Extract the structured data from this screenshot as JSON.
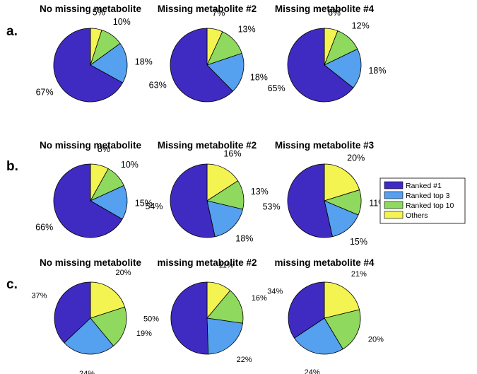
{
  "figure": {
    "colors": {
      "Ranked #1": "#3f2bc2",
      "Ranked top 3": "#55a0ef",
      "Ranked top 10": "#8ed95e",
      "Others": "#f3f451"
    },
    "legend_position": "center-right"
  },
  "chart_data": [
    {
      "type": "pie",
      "row": "a.",
      "title": "No missing metabolite",
      "categories": [
        "Others",
        "Ranked top 10",
        "Ranked top 3",
        "Ranked #1"
      ],
      "values": [
        5,
        10,
        18,
        67
      ],
      "labels": [
        "5%",
        "10%",
        "18%",
        "67%"
      ]
    },
    {
      "type": "pie",
      "row": "a.",
      "title": "Missing metabolite #2",
      "categories": [
        "Others",
        "Ranked top 10",
        "Ranked top 3",
        "Ranked #1"
      ],
      "values": [
        7,
        13,
        18,
        63
      ],
      "labels": [
        "7%",
        "13%",
        "18%",
        "63%"
      ]
    },
    {
      "type": "pie",
      "row": "a.",
      "title": "Missing metabolite #4",
      "categories": [
        "Others",
        "Ranked top 10",
        "Ranked top 3",
        "Ranked #1"
      ],
      "values": [
        6,
        12,
        18,
        65
      ],
      "labels": [
        "6%",
        "12%",
        "18%",
        "65%"
      ]
    },
    {
      "type": "pie",
      "row": "b.",
      "title": "No missing metabolite",
      "categories": [
        "Others",
        "Ranked top 10",
        "Ranked top 3",
        "Ranked #1"
      ],
      "values": [
        8,
        10,
        15,
        66
      ],
      "labels": [
        "8%",
        "10%",
        "15%",
        "66%"
      ]
    },
    {
      "type": "pie",
      "row": "b.",
      "title": "Missing metabolite #2",
      "categories": [
        "Others",
        "Ranked top 10",
        "Ranked top 3",
        "Ranked #1"
      ],
      "values": [
        16,
        13,
        18,
        54
      ],
      "labels": [
        "16%",
        "13%",
        "18%",
        "54%"
      ]
    },
    {
      "type": "pie",
      "row": "b.",
      "title": "Missing metabolite #3",
      "categories": [
        "Others",
        "Ranked top 10",
        "Ranked top 3",
        "Ranked #1"
      ],
      "values": [
        20,
        11,
        15,
        53
      ],
      "labels": [
        "20%",
        "11%",
        "15%",
        "53%"
      ]
    },
    {
      "type": "pie",
      "row": "c.",
      "title": "No missing metabolite",
      "categories": [
        "Others",
        "Ranked top 10",
        "Ranked top 3",
        "Ranked #1"
      ],
      "values": [
        20,
        19,
        24,
        37
      ],
      "labels": [
        "20%",
        "19%",
        "24%",
        "37%"
      ]
    },
    {
      "type": "pie",
      "row": "c.",
      "title": "missing metabolite #2",
      "categories": [
        "Others",
        "Ranked top 10",
        "Ranked top 3",
        "Ranked #1"
      ],
      "values": [
        11,
        16,
        22,
        50
      ],
      "labels": [
        "11%",
        "16%",
        "22%",
        "50%"
      ]
    },
    {
      "type": "pie",
      "row": "c.",
      "title": "missing metabolite #4",
      "categories": [
        "Others",
        "Ranked top 10",
        "Ranked top 3",
        "Ranked #1"
      ],
      "values": [
        21,
        20,
        24,
        34
      ],
      "labels": [
        "21%",
        "20%",
        "24%",
        "34%"
      ]
    }
  ],
  "row_labels": [
    "a.",
    "b.",
    "c."
  ],
  "legend": {
    "entries": [
      "Ranked #1",
      "Ranked top 3",
      "Ranked top 10",
      "Others"
    ]
  }
}
